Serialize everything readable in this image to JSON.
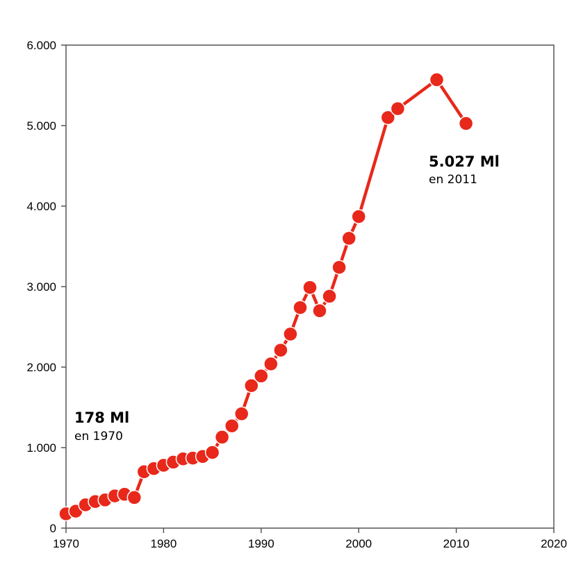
{
  "colors": {
    "series": "#e8281a",
    "axis": "#555555"
  },
  "chart_data": {
    "type": "line",
    "title": "",
    "xlabel": "",
    "ylabel": "",
    "xlim": [
      1970,
      2020
    ],
    "ylim": [
      0,
      6000
    ],
    "x_ticks": [
      1970,
      1980,
      1990,
      2000,
      2010,
      2020
    ],
    "x_tick_labels": [
      "1970",
      "1980",
      "1990",
      "2000",
      "2010",
      "2020"
    ],
    "y_ticks": [
      0,
      1000,
      2000,
      3000,
      4000,
      5000,
      6000
    ],
    "y_tick_labels": [
      "0",
      "1.000",
      "2.000",
      "3.000",
      "4.000",
      "5.000",
      "6.000"
    ],
    "grid": false,
    "legend": "none",
    "series": [
      {
        "x": [
          1970,
          1971,
          1972,
          1973,
          1974,
          1975,
          1976,
          1977,
          1978,
          1979,
          1980,
          1981,
          1982,
          1983,
          1984,
          1985,
          1986,
          1987,
          1988,
          1989,
          1990,
          1991,
          1992,
          1993,
          1994,
          1995,
          1996,
          1997,
          1998,
          1999,
          2000,
          2003,
          2004,
          2008,
          2011
        ],
        "values": [
          178,
          210,
          290,
          330,
          350,
          400,
          420,
          380,
          700,
          740,
          780,
          820,
          860,
          870,
          890,
          940,
          1130,
          1270,
          1420,
          1770,
          1890,
          2040,
          2210,
          2410,
          2740,
          2990,
          2700,
          2880,
          3240,
          3600,
          3870,
          5100,
          5210,
          5570,
          5027
        ]
      }
    ],
    "annotations": [
      {
        "value_label": "178 Ml",
        "sub_label": "en 1970"
      },
      {
        "value_label": "5.027 Ml",
        "sub_label": "en 2011"
      }
    ]
  }
}
